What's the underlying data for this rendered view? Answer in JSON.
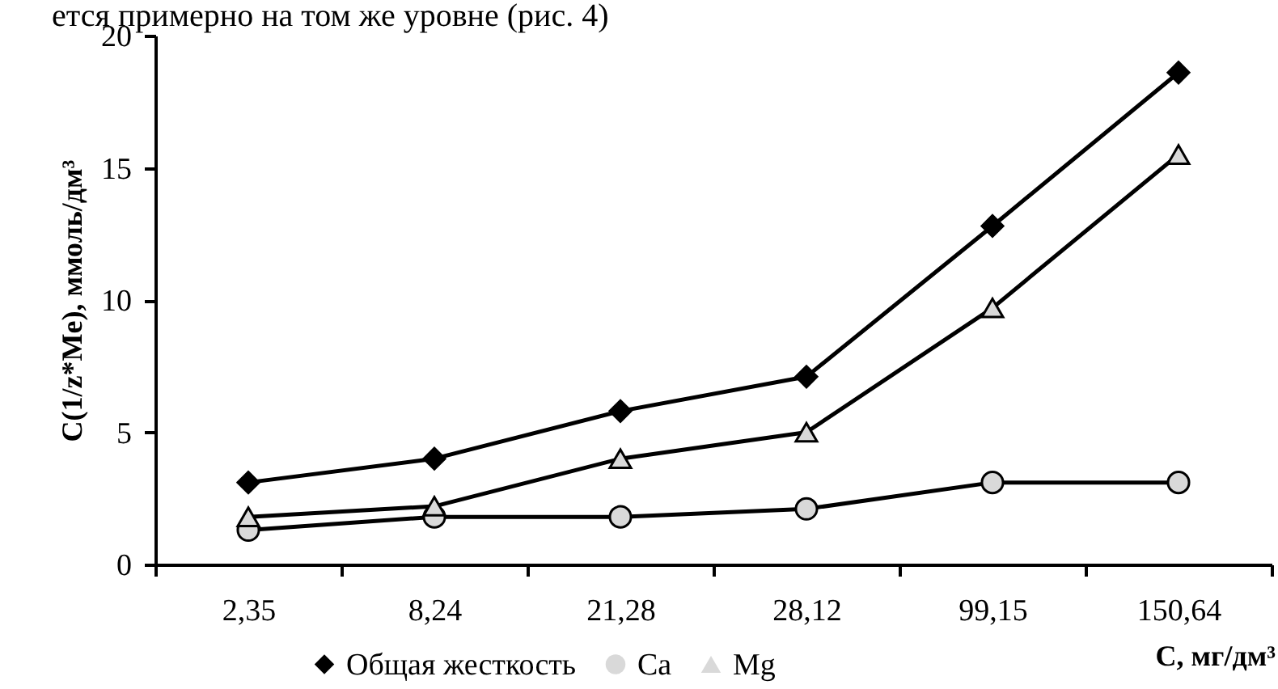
{
  "chart_data": {
    "type": "line",
    "categories": [
      "2,35",
      "8,24",
      "21,28",
      "28,12",
      "99,15",
      "150,64"
    ],
    "xlabel": "C, мг/дм³",
    "ylabel": "C(1/z*Me), ммоль/дм³",
    "annotations": [
      "ется примерно на том же уровне (рис. 4)"
    ],
    "series": [
      {
        "name": "Общая жесткость",
        "color": "#000000",
        "marker": "diamond",
        "values": [
          3.1,
          4.0,
          5.8,
          7.1,
          12.8,
          18.6
        ]
      },
      {
        "name": "Ca",
        "color": "#d9d9d9",
        "marker": "circle",
        "values": [
          1.3,
          1.8,
          1.8,
          2.1,
          3.1,
          3.1
        ]
      },
      {
        "name": "Mg",
        "color": "#d9d9d9",
        "marker": "triangle",
        "values": [
          1.8,
          2.2,
          4.0,
          5.0,
          9.7,
          15.5
        ]
      }
    ],
    "ylim": [
      0,
      20
    ],
    "yticks": [
      0,
      5,
      10,
      15,
      20
    ],
    "grid": false,
    "legend": "bottom",
    "line_style": "solid"
  }
}
